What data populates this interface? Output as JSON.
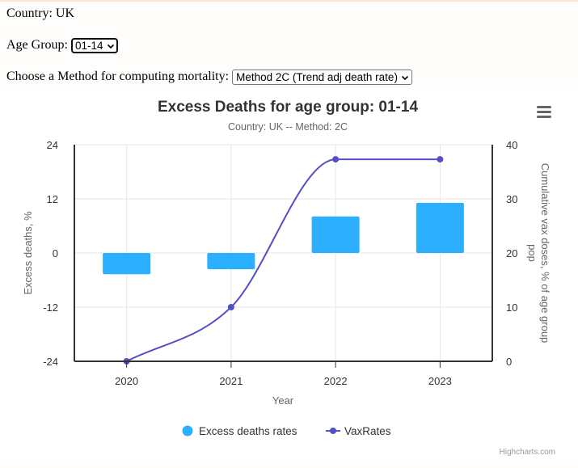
{
  "controls": {
    "country_label": "Country: UK",
    "age_group_label": "Age Group:",
    "age_group_value": "01-14",
    "method_label": "Choose a Method for computing mortality:",
    "method_value": "Method 2C (Trend adj death rate)"
  },
  "colors": {
    "bar": "#2caffe",
    "line": "#544fc5",
    "grid": "#e6e6e6",
    "axis": "#333333"
  },
  "chart_data": {
    "type": "bar+line",
    "title": "Excess Deaths for age group: 01-14",
    "subtitle": "Country: UK -- Method: 2C",
    "xlabel": "Year",
    "ylabel": "Excess deaths, %",
    "y2label": "Cumulative vax doses, % of age group pop",
    "categories": [
      "2020",
      "2021",
      "2022",
      "2023"
    ],
    "ylim": [
      -24,
      24
    ],
    "yticks": [
      -24,
      -12,
      0,
      12,
      24
    ],
    "y2lim": [
      0,
      40
    ],
    "y2ticks": [
      0,
      10,
      20,
      30,
      40
    ],
    "grid": true,
    "legend_position": "bottom-center",
    "series": [
      {
        "name": "Excess deaths rates",
        "type": "bar",
        "axis": "left",
        "values": [
          -4.7,
          -3.6,
          8.1,
          11.1
        ]
      },
      {
        "name": "VaxRates",
        "type": "spline",
        "axis": "right",
        "values": [
          0,
          10,
          37.3,
          37.3
        ]
      }
    ],
    "credits": "Highcharts.com"
  },
  "menu_icon": "hamburger-menu-icon"
}
